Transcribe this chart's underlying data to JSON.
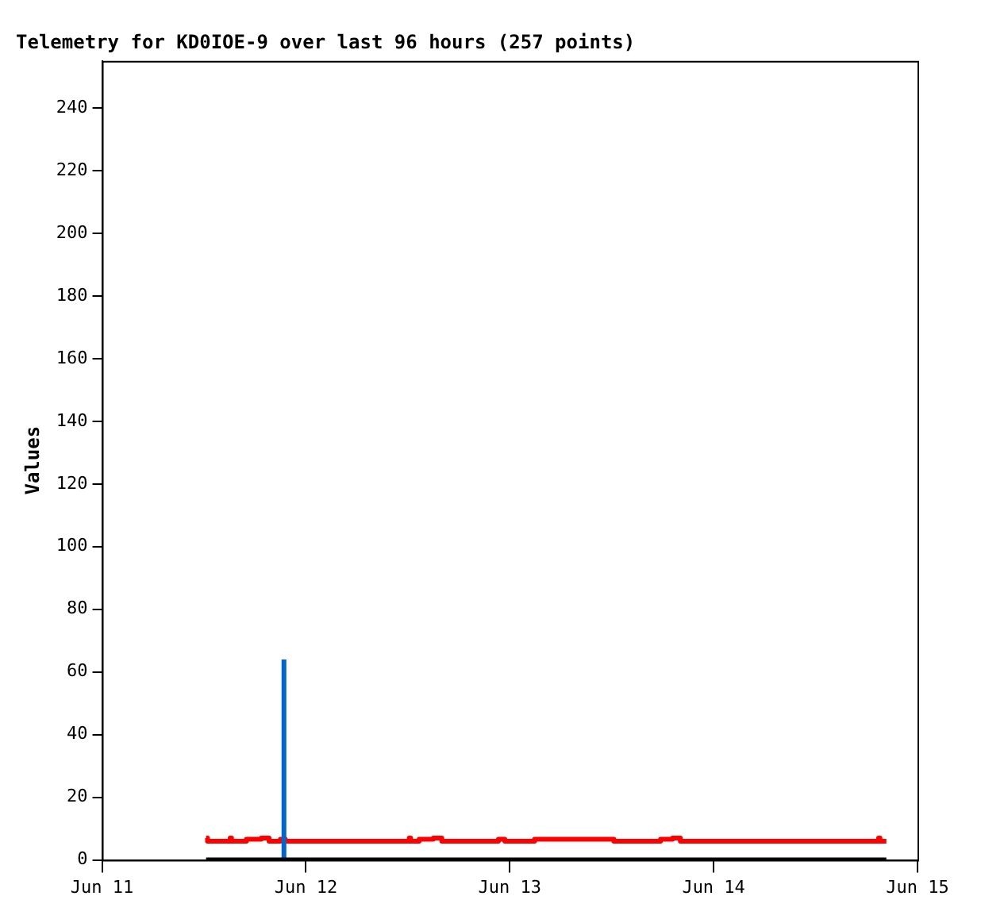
{
  "chart_data": {
    "type": "step",
    "title": "Telemetry for KD0IOE-9 over last 96 hours (257 points)",
    "ylabel": "Values",
    "xlim": [
      "--06-11",
      "--06-15"
    ],
    "xticks": [
      {
        "value": "--06-11",
        "label": "Jun 11"
      },
      {
        "value": "--06-12",
        "label": "Jun 12"
      },
      {
        "value": "--06-13",
        "label": "Jun 13"
      },
      {
        "value": "--06-14",
        "label": "Jun 14"
      },
      {
        "value": "--06-15",
        "label": "Jun 15"
      }
    ],
    "ylim": [
      0,
      255
    ],
    "yticks": [
      0,
      20,
      40,
      60,
      80,
      100,
      120,
      140,
      160,
      180,
      200,
      220,
      240
    ],
    "grid": false,
    "legend": false,
    "series": [
      {
        "color": "#ff0000",
        "x": [
          "--06-11T12:15",
          "--06-11T12:25",
          "--06-11T15:05",
          "--06-11T15:15",
          "--06-11T17:00",
          "--06-11T18:45",
          "--06-11T19:40",
          "--06-11T21:00",
          "--06-11T21:35",
          "--06-12T12:10",
          "--06-12T12:20",
          "--06-12T13:20",
          "--06-12T15:00",
          "--06-12T16:00",
          "--06-12T22:40",
          "--06-12T23:25",
          "--06-13T02:55",
          "--06-13T12:15",
          "--06-13T17:45",
          "--06-13T19:10",
          "--06-13T20:05",
          "--06-14T19:25",
          "--06-14T19:35",
          "--06-14T20:20"
        ],
        "values": [
          7,
          6,
          7,
          6,
          6.6,
          7,
          6,
          6.6,
          6,
          7,
          6,
          6.6,
          7,
          6,
          6.6,
          6,
          6.6,
          6,
          6.6,
          7,
          6,
          7,
          6,
          6
        ]
      },
      {
        "color": "#0066cc",
        "x": [
          "--06-11T21:25",
          "--06-11T21:25"
        ],
        "values": [
          0,
          64
        ]
      },
      {
        "color": "#000000",
        "x": [
          "--06-11T12:15",
          "--06-14T20:20"
        ],
        "values": [
          0,
          0
        ]
      }
    ]
  }
}
